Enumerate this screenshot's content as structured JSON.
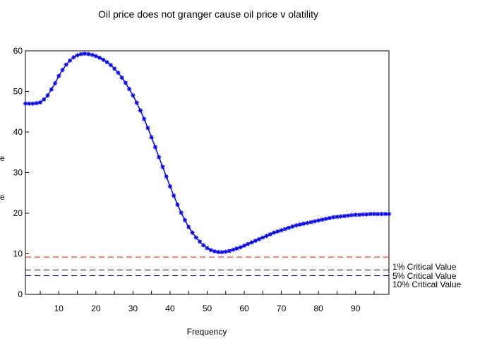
{
  "chart_data": {
    "type": "line",
    "title": "Oil price does not granger cause oil price v olatility",
    "xlabel": "Frequency",
    "ylabel_fragments": [
      "e",
      "e"
    ],
    "xlim": [
      1,
      99
    ],
    "ylim": [
      0,
      60
    ],
    "x_ticks": [
      10,
      20,
      30,
      40,
      50,
      60,
      70,
      80,
      90
    ],
    "y_ticks": [
      0,
      10,
      20,
      30,
      40,
      50,
      60
    ],
    "grid": false,
    "series": [
      {
        "color": "#0000ff",
        "marker": "star",
        "x": [
          1,
          2,
          3,
          4,
          5,
          6,
          7,
          8,
          9,
          10,
          11,
          12,
          13,
          14,
          15,
          16,
          17,
          18,
          19,
          20,
          21,
          22,
          23,
          24,
          25,
          26,
          27,
          28,
          29,
          30,
          31,
          32,
          33,
          34,
          35,
          36,
          37,
          38,
          39,
          40,
          41,
          42,
          43,
          44,
          45,
          46,
          47,
          48,
          49,
          50,
          51,
          52,
          53,
          54,
          55,
          56,
          57,
          58,
          59,
          60,
          61,
          62,
          63,
          64,
          65,
          66,
          67,
          68,
          69,
          70,
          71,
          72,
          73,
          74,
          75,
          76,
          77,
          78,
          79,
          80,
          81,
          82,
          83,
          84,
          85,
          86,
          87,
          88,
          89,
          90,
          91,
          92,
          93,
          94,
          95,
          96,
          97,
          98,
          99
        ],
        "y": [
          47,
          47,
          47,
          47.1,
          47.3,
          48,
          49,
          50.5,
          52,
          53.8,
          55.3,
          56.6,
          57.6,
          58.4,
          58.9,
          59.2,
          59.3,
          59.2,
          59,
          58.7,
          58.3,
          57.8,
          57.2,
          56.5,
          55.6,
          54.6,
          53.4,
          52.1,
          50.6,
          49,
          47.2,
          45.3,
          43.2,
          41,
          38.7,
          36.3,
          33.8,
          31.4,
          29,
          26.6,
          24.3,
          22.1,
          20.1,
          18.3,
          16.6,
          15.2,
          14,
          13,
          12.1,
          11.4,
          10.9,
          10.6,
          10.4,
          10.4,
          10.5,
          10.7,
          11,
          11.3,
          11.6,
          12,
          12.4,
          12.8,
          13.2,
          13.6,
          14,
          14.4,
          14.8,
          15.2,
          15.5,
          15.8,
          16.1,
          16.4,
          16.7,
          17,
          17.2,
          17.4,
          17.6,
          17.8,
          18,
          18.2,
          18.4,
          18.6,
          18.8,
          19,
          19.1,
          19.2,
          19.3,
          19.4,
          19.5,
          19.6,
          19.6,
          19.7,
          19.7,
          19.8,
          19.8,
          19.8,
          19.8,
          19.8,
          19.8
        ]
      }
    ],
    "reference_lines": [
      {
        "name": "1% Critical Value",
        "value": 9.2,
        "color": "#ff0000",
        "dash": "dashed"
      },
      {
        "name": "5% Critical Value",
        "value": 6.0,
        "color": "#000000",
        "dash": "dashed"
      },
      {
        "name": "10% Critical Value",
        "value": 4.6,
        "color": "#0000ff",
        "dash": "dashed"
      }
    ]
  }
}
